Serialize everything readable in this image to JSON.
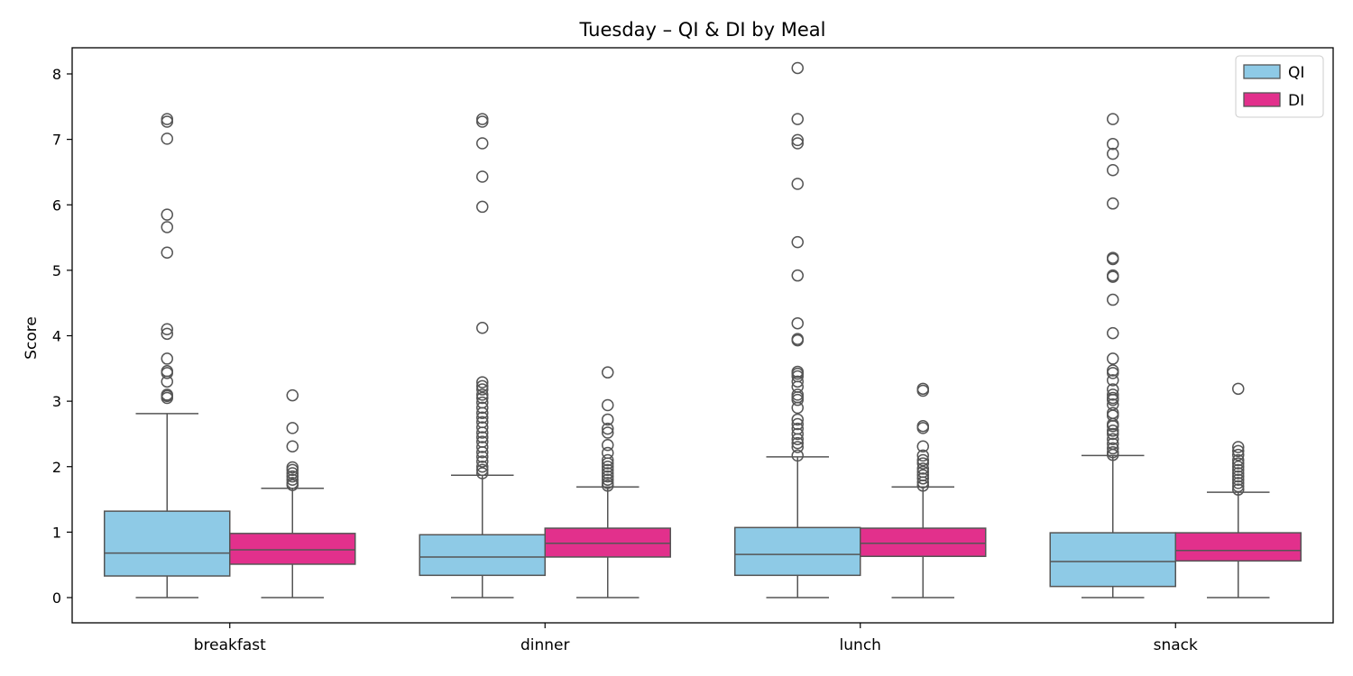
{
  "chart_data": {
    "type": "box",
    "title": "Tuesday – QI & DI by Meal",
    "xlabel": "",
    "ylabel": "Score",
    "ylim": [
      -0.4,
      8.5
    ],
    "yticks": [
      0,
      1,
      2,
      3,
      4,
      5,
      6,
      7,
      8
    ],
    "categories": [
      "breakfast",
      "dinner",
      "lunch",
      "snack"
    ],
    "legend": {
      "position": "top-right"
    },
    "series": [
      {
        "name": "QI",
        "color": "#8ecae6",
        "boxes": [
          {
            "whislo": 0,
            "q1": 0.33,
            "median": 0.68,
            "q3": 1.32,
            "whishi": 2.81,
            "fliers": [
              3.05,
              3.08,
              3.1,
              3.3,
              3.43,
              3.46,
              3.65,
              4.03,
              4.1,
              5.27,
              5.66,
              5.85,
              7.01,
              7.27,
              7.31
            ]
          },
          {
            "whislo": 0,
            "q1": 0.34,
            "median": 0.62,
            "q3": 0.96,
            "whishi": 1.87,
            "fliers": [
              1.9,
              1.95,
              2.0,
              2.08,
              2.15,
              2.22,
              2.3,
              2.38,
              2.45,
              2.52,
              2.6,
              2.68,
              2.75,
              2.82,
              2.9,
              2.98,
              3.05,
              3.1,
              3.18,
              3.23,
              3.29,
              4.12,
              5.97,
              6.43,
              6.94,
              7.27,
              7.31
            ]
          },
          {
            "whislo": 0,
            "q1": 0.34,
            "median": 0.66,
            "q3": 1.07,
            "whishi": 2.15,
            "fliers": [
              2.17,
              2.3,
              2.36,
              2.42,
              2.5,
              2.58,
              2.65,
              2.72,
              2.9,
              3.02,
              3.06,
              3.1,
              3.22,
              3.3,
              3.38,
              3.42,
              3.45,
              3.93,
              3.95,
              4.19,
              4.92,
              5.43,
              6.32,
              6.94,
              6.99,
              7.31,
              8.09
            ]
          },
          {
            "whislo": 0,
            "q1": 0.17,
            "median": 0.55,
            "q3": 0.99,
            "whishi": 2.17,
            "fliers": [
              2.18,
              2.22,
              2.28,
              2.35,
              2.42,
              2.5,
              2.55,
              2.62,
              2.65,
              2.78,
              2.82,
              2.95,
              3.02,
              3.05,
              3.1,
              3.18,
              3.32,
              3.43,
              3.47,
              3.65,
              4.04,
              4.55,
              4.9,
              4.92,
              5.17,
              5.19,
              6.02,
              6.53,
              6.78,
              6.93,
              7.31
            ]
          }
        ]
      },
      {
        "name": "DI",
        "color": "#e2308c",
        "boxes": [
          {
            "whislo": 0,
            "q1": 0.51,
            "median": 0.73,
            "q3": 0.98,
            "whishi": 1.67,
            "fliers": [
              1.72,
              1.75,
              1.8,
              1.85,
              1.9,
              1.95,
              1.99,
              2.31,
              2.59,
              3.09
            ]
          },
          {
            "whislo": 0,
            "q1": 0.62,
            "median": 0.83,
            "q3": 1.06,
            "whishi": 1.69,
            "fliers": [
              1.71,
              1.75,
              1.8,
              1.85,
              1.9,
              1.95,
              2.0,
              2.05,
              2.1,
              2.21,
              2.33,
              2.52,
              2.58,
              2.72,
              2.94,
              3.44
            ]
          },
          {
            "whislo": 0,
            "q1": 0.63,
            "median": 0.83,
            "q3": 1.06,
            "whishi": 1.69,
            "fliers": [
              1.71,
              1.76,
              1.82,
              1.87,
              1.92,
              1.97,
              2.05,
              2.1,
              2.17,
              2.31,
              2.59,
              2.62,
              3.16,
              3.19
            ]
          },
          {
            "whislo": 0,
            "q1": 0.56,
            "median": 0.72,
            "q3": 0.99,
            "whishi": 1.61,
            "fliers": [
              1.65,
              1.7,
              1.75,
              1.8,
              1.85,
              1.9,
              1.95,
              2.0,
              2.05,
              2.1,
              2.18,
              2.24,
              2.3,
              3.19
            ]
          }
        ]
      }
    ]
  }
}
